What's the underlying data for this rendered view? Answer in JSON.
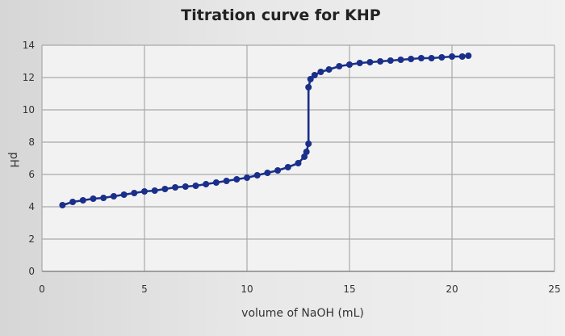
{
  "chart_data": {
    "type": "scatter",
    "title": "Titration curve for KHP",
    "xlabel": "volume of NaOH (mL)",
    "ylabel": "pH",
    "xlim": [
      0,
      25
    ],
    "ylim": [
      0,
      14
    ],
    "x_ticks": [
      0,
      5,
      10,
      15,
      20,
      25
    ],
    "y_ticks": [
      0,
      2,
      4,
      6,
      8,
      10,
      12,
      14
    ],
    "grid": true,
    "line_style": "smooth-with-markers",
    "colors": {
      "series": "#1a2f8a",
      "grid": "#a9a9a9",
      "plot_background": "#f2f2f2"
    },
    "series": [
      {
        "x": [
          1.0,
          1.5,
          2.0,
          2.5,
          3.0,
          3.5,
          4.0,
          4.5,
          5.0,
          5.5,
          6.0,
          6.5,
          7.0,
          7.5,
          8.0,
          8.5,
          9.0,
          9.5,
          10.0,
          10.5,
          11.0,
          11.5,
          12.0,
          12.5,
          12.8,
          12.9,
          13.0,
          13.0,
          13.1,
          13.3,
          13.6,
          14.0,
          14.5,
          15.0,
          15.5,
          16.0,
          16.5,
          17.0,
          17.5,
          18.0,
          18.5,
          19.0,
          19.5,
          20.0,
          20.5,
          20.8
        ],
        "y": [
          4.1,
          4.3,
          4.4,
          4.5,
          4.55,
          4.65,
          4.75,
          4.85,
          4.95,
          5.0,
          5.1,
          5.2,
          5.25,
          5.3,
          5.4,
          5.5,
          5.6,
          5.7,
          5.8,
          5.95,
          6.1,
          6.25,
          6.45,
          6.7,
          7.1,
          7.4,
          7.9,
          11.4,
          11.9,
          12.15,
          12.35,
          12.5,
          12.7,
          12.8,
          12.9,
          12.95,
          13.0,
          13.05,
          13.1,
          13.15,
          13.2,
          13.2,
          13.25,
          13.3,
          13.3,
          13.35
        ]
      }
    ]
  }
}
